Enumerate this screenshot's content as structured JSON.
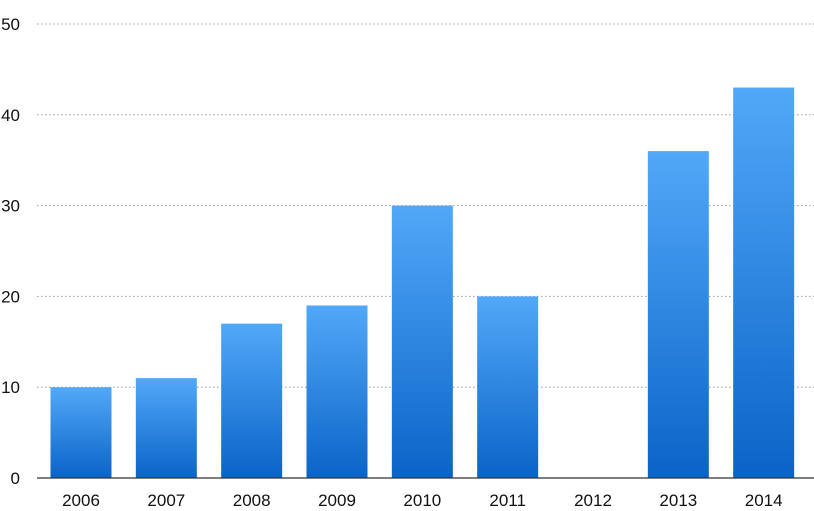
{
  "chart_data": {
    "type": "bar",
    "categories": [
      "2006",
      "2007",
      "2008",
      "2009",
      "2010",
      "2011",
      "2012",
      "2013",
      "2014"
    ],
    "values": [
      10,
      11,
      17,
      19,
      30,
      20,
      0,
      36,
      43
    ],
    "title": "",
    "xlabel": "",
    "ylabel": "",
    "ylim": [
      0,
      50
    ],
    "yticks": [
      "0",
      "10",
      "20",
      "30",
      "40",
      "50"
    ],
    "grid": true,
    "bar_color_top": "#52a8f8",
    "bar_color_bottom": "#0a64c8"
  }
}
